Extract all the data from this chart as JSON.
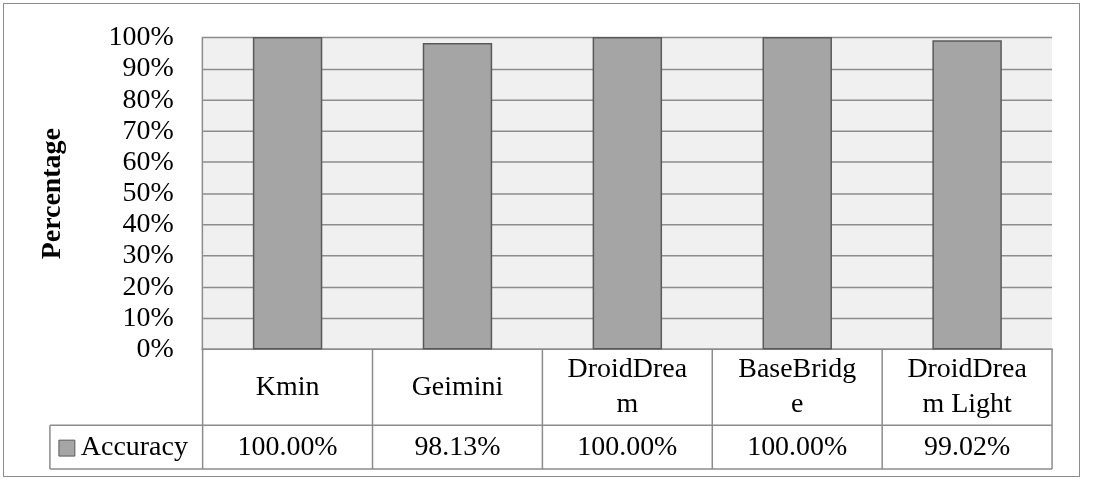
{
  "chart_data": {
    "type": "bar",
    "ylabel": "Percentage",
    "categories": [
      "Kmin",
      "Geimini",
      "DroidDream",
      "BaseBridge",
      "DroidDream Light"
    ],
    "series": [
      {
        "name": "Accuracy",
        "color": "#a5a5a5",
        "values": [
          100,
          98.13,
          100,
          100,
          99.02
        ],
        "value_labels": [
          "100.00%",
          "98.13%",
          "100.00%",
          "100.00%",
          "99.02%"
        ]
      }
    ],
    "ylim": [
      0,
      100
    ],
    "yticks": [
      {
        "value": 0,
        "label": "0%"
      },
      {
        "value": 10,
        "label": "10%"
      },
      {
        "value": 20,
        "label": "20%"
      },
      {
        "value": 30,
        "label": "30%"
      },
      {
        "value": 40,
        "label": "40%"
      },
      {
        "value": 50,
        "label": "50%"
      },
      {
        "value": 60,
        "label": "60%"
      },
      {
        "value": 70,
        "label": "70%"
      },
      {
        "value": 80,
        "label": "80%"
      },
      {
        "value": 90,
        "label": "90%"
      },
      {
        "value": 100,
        "label": "100%"
      }
    ],
    "grid": "y",
    "legend": "bottom left"
  }
}
